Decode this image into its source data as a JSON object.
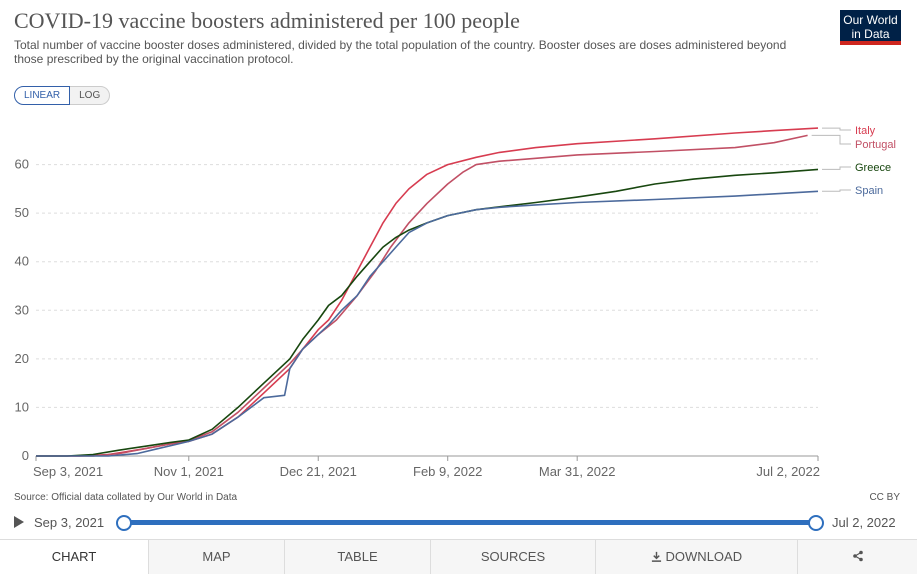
{
  "header": {
    "title": "COVID-19 vaccine boosters administered per 100 people",
    "subtitle": "Total number of vaccine booster doses administered, divided by the total population of the country. Booster doses are doses administered beyond those prescribed by the original vaccination protocol.",
    "logo_line1": "Our World",
    "logo_line2": "in Data"
  },
  "scale_toggle": {
    "linear": "LINEAR",
    "log": "LOG",
    "selected": "LINEAR"
  },
  "chart_data": {
    "type": "line",
    "title": "COVID-19 vaccine boosters administered per 100 people",
    "x_ticks": [
      "Sep 3, 2021",
      "Nov 1, 2021",
      "Dec 21, 2021",
      "Feb 9, 2022",
      "Mar 31, 2022",
      "Jul 2, 2022"
    ],
    "x_range": [
      "2021-09-03",
      "2022-07-02"
    ],
    "y_ticks": [
      0,
      10,
      20,
      30,
      40,
      50,
      60
    ],
    "ylim": [
      0,
      70
    ],
    "grid": "horizontal-dashed",
    "legend": "inline-right",
    "series": [
      {
        "name": "Italy",
        "color": "#d73c50",
        "points": [
          [
            "2021-09-03",
            0
          ],
          [
            "2021-09-20",
            0
          ],
          [
            "2021-10-01",
            0.3
          ],
          [
            "2021-10-15",
            1.5
          ],
          [
            "2021-10-25",
            2.5
          ],
          [
            "2021-11-01",
            3
          ],
          [
            "2021-11-10",
            4.5
          ],
          [
            "2021-11-20",
            8
          ],
          [
            "2021-11-30",
            13
          ],
          [
            "2021-12-10",
            18
          ],
          [
            "2021-12-15",
            22
          ],
          [
            "2021-12-21",
            26
          ],
          [
            "2021-12-25",
            28
          ],
          [
            "2021-12-30",
            32
          ],
          [
            "2022-01-05",
            38
          ],
          [
            "2022-01-10",
            43
          ],
          [
            "2022-01-15",
            48
          ],
          [
            "2022-01-20",
            52
          ],
          [
            "2022-01-25",
            55
          ],
          [
            "2022-02-01",
            58
          ],
          [
            "2022-02-09",
            60
          ],
          [
            "2022-02-20",
            61.5
          ],
          [
            "2022-03-01",
            62.5
          ],
          [
            "2022-03-15",
            63.5
          ],
          [
            "2022-03-31",
            64.3
          ],
          [
            "2022-04-30",
            65.3
          ],
          [
            "2022-05-31",
            66.5
          ],
          [
            "2022-06-15",
            67
          ],
          [
            "2022-07-02",
            67.5
          ]
        ]
      },
      {
        "name": "Portugal",
        "color": "#c15065",
        "points": [
          [
            "2021-09-03",
            0
          ],
          [
            "2021-09-25",
            0
          ],
          [
            "2021-10-05",
            0.5
          ],
          [
            "2021-10-15",
            1.5
          ],
          [
            "2021-10-25",
            2.5
          ],
          [
            "2021-11-01",
            3.2
          ],
          [
            "2021-11-10",
            5
          ],
          [
            "2021-11-20",
            9
          ],
          [
            "2021-11-30",
            14
          ],
          [
            "2021-12-10",
            19
          ],
          [
            "2021-12-15",
            22
          ],
          [
            "2021-12-21",
            25
          ],
          [
            "2021-12-28",
            28
          ],
          [
            "2022-01-05",
            33
          ],
          [
            "2022-01-12",
            38
          ],
          [
            "2022-01-18",
            43
          ],
          [
            "2022-01-25",
            48
          ],
          [
            "2022-02-01",
            52
          ],
          [
            "2022-02-09",
            56
          ],
          [
            "2022-02-15",
            58.5
          ],
          [
            "2022-02-20",
            60
          ],
          [
            "2022-03-01",
            60.7
          ],
          [
            "2022-03-15",
            61.3
          ],
          [
            "2022-03-31",
            62
          ],
          [
            "2022-04-30",
            62.7
          ],
          [
            "2022-05-31",
            63.5
          ],
          [
            "2022-06-15",
            64.5
          ],
          [
            "2022-06-28",
            66
          ]
        ]
      },
      {
        "name": "Greece",
        "color": "#18470f",
        "points": [
          [
            "2021-09-03",
            0
          ],
          [
            "2021-09-15",
            0
          ],
          [
            "2021-09-25",
            0.3
          ],
          [
            "2021-10-05",
            1.2
          ],
          [
            "2021-10-15",
            2
          ],
          [
            "2021-10-25",
            2.8
          ],
          [
            "2021-11-01",
            3.3
          ],
          [
            "2021-11-10",
            5.5
          ],
          [
            "2021-11-20",
            10
          ],
          [
            "2021-11-30",
            15
          ],
          [
            "2021-12-10",
            20
          ],
          [
            "2021-12-15",
            24
          ],
          [
            "2021-12-21",
            28
          ],
          [
            "2021-12-25",
            31
          ],
          [
            "2021-12-30",
            33
          ],
          [
            "2022-01-05",
            37
          ],
          [
            "2022-01-10",
            40
          ],
          [
            "2022-01-15",
            43
          ],
          [
            "2022-01-20",
            45
          ],
          [
            "2022-01-25",
            46.5
          ],
          [
            "2022-02-01",
            48
          ],
          [
            "2022-02-09",
            49.5
          ],
          [
            "2022-02-20",
            50.7
          ],
          [
            "2022-03-01",
            51.3
          ],
          [
            "2022-03-15",
            52.2
          ],
          [
            "2022-03-31",
            53.3
          ],
          [
            "2022-04-15",
            54.5
          ],
          [
            "2022-04-30",
            56
          ],
          [
            "2022-05-15",
            57
          ],
          [
            "2022-05-31",
            57.8
          ],
          [
            "2022-06-15",
            58.3
          ],
          [
            "2022-07-02",
            59
          ]
        ]
      },
      {
        "name": "Spain",
        "color": "#4c6a9c",
        "points": [
          [
            "2021-09-03",
            0
          ],
          [
            "2021-10-01",
            0
          ],
          [
            "2021-10-12",
            0.5
          ],
          [
            "2021-10-20",
            1.5
          ],
          [
            "2021-10-28",
            2.5
          ],
          [
            "2021-11-01",
            3
          ],
          [
            "2021-11-10",
            4.5
          ],
          [
            "2021-11-20",
            8
          ],
          [
            "2021-11-30",
            12
          ],
          [
            "2021-12-08",
            12.5
          ],
          [
            "2021-12-10",
            18
          ],
          [
            "2021-12-15",
            22
          ],
          [
            "2021-12-21",
            25
          ],
          [
            "2021-12-25",
            27
          ],
          [
            "2021-12-30",
            30
          ],
          [
            "2022-01-05",
            33
          ],
          [
            "2022-01-10",
            37
          ],
          [
            "2022-01-15",
            40
          ],
          [
            "2022-01-20",
            43
          ],
          [
            "2022-01-25",
            46
          ],
          [
            "2022-02-01",
            48
          ],
          [
            "2022-02-09",
            49.5
          ],
          [
            "2022-02-20",
            50.7
          ],
          [
            "2022-03-01",
            51.2
          ],
          [
            "2022-03-15",
            51.7
          ],
          [
            "2022-03-31",
            52.2
          ],
          [
            "2022-04-30",
            52.8
          ],
          [
            "2022-05-31",
            53.5
          ],
          [
            "2022-07-02",
            54.5
          ]
        ]
      }
    ],
    "legend_order": [
      "Italy",
      "Portugal",
      "Greece",
      "Spain"
    ]
  },
  "footer": {
    "source": "Source: Official data collated by Our World in Data",
    "license": "CC BY"
  },
  "timeline": {
    "start": "Sep 3, 2021",
    "end": "Jul 2, 2022"
  },
  "tabs": {
    "chart": "CHART",
    "map": "MAP",
    "table": "TABLE",
    "sources": "SOURCES",
    "download": "DOWNLOAD",
    "download_icon": "download-icon",
    "share_icon": "share-icon"
  }
}
